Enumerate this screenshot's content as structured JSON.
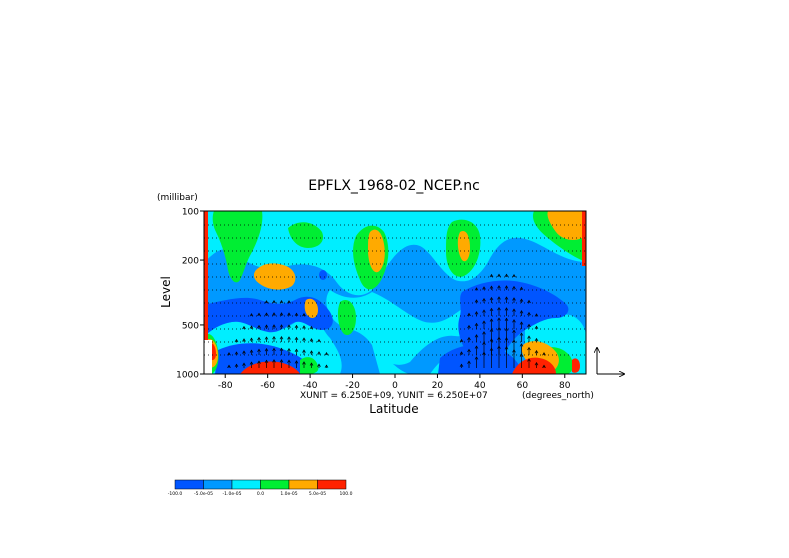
{
  "chart_data": {
    "type": "heatmap",
    "title": "EPFLX_1968-02_NCEP.nc",
    "xlabel": "Latitude",
    "ylabel": "Level",
    "y_units": "(millibar)",
    "x_units": "(degrees_north)",
    "vector_scale": "XUNIT = 6.250E+09, YUNIT = 6.250E+07",
    "xlim": [
      -90,
      90
    ],
    "ylim": [
      1000,
      100
    ],
    "y_scale": "log",
    "x_ticks": [
      -80,
      -60,
      -40,
      -20,
      0,
      20,
      40,
      60,
      80
    ],
    "x_tick_labels": [
      "-80",
      "-60",
      "-40",
      "-20",
      "0",
      "20",
      "40",
      "60",
      "80"
    ],
    "y_ticks": [
      100,
      200,
      500,
      1000
    ],
    "y_tick_labels": [
      "100",
      "200",
      "500",
      "1000"
    ],
    "levels": [
      {
        "label": "-100.0",
        "color": "#0055ff"
      },
      {
        "label": "-5.0e-05",
        "color": "#0099ff"
      },
      {
        "label": "-1.0e-05",
        "color": "#00eeff"
      },
      {
        "label": "0.0",
        "color": "#00ee33"
      },
      {
        "label": "1.0e-05",
        "color": "#ffaa00"
      },
      {
        "label": "5.0e-05",
        "color": "#ff2200"
      },
      {
        "label": "100.0",
        "color": ""
      }
    ],
    "colors": {
      "dark_blue": "#0055ff",
      "mid_blue": "#0099ff",
      "cyan": "#00eeff",
      "green": "#00ee33",
      "orange": "#ffaa00",
      "red": "#ff2200"
    },
    "grid": false,
    "legend_placement": "bottom-left"
  }
}
